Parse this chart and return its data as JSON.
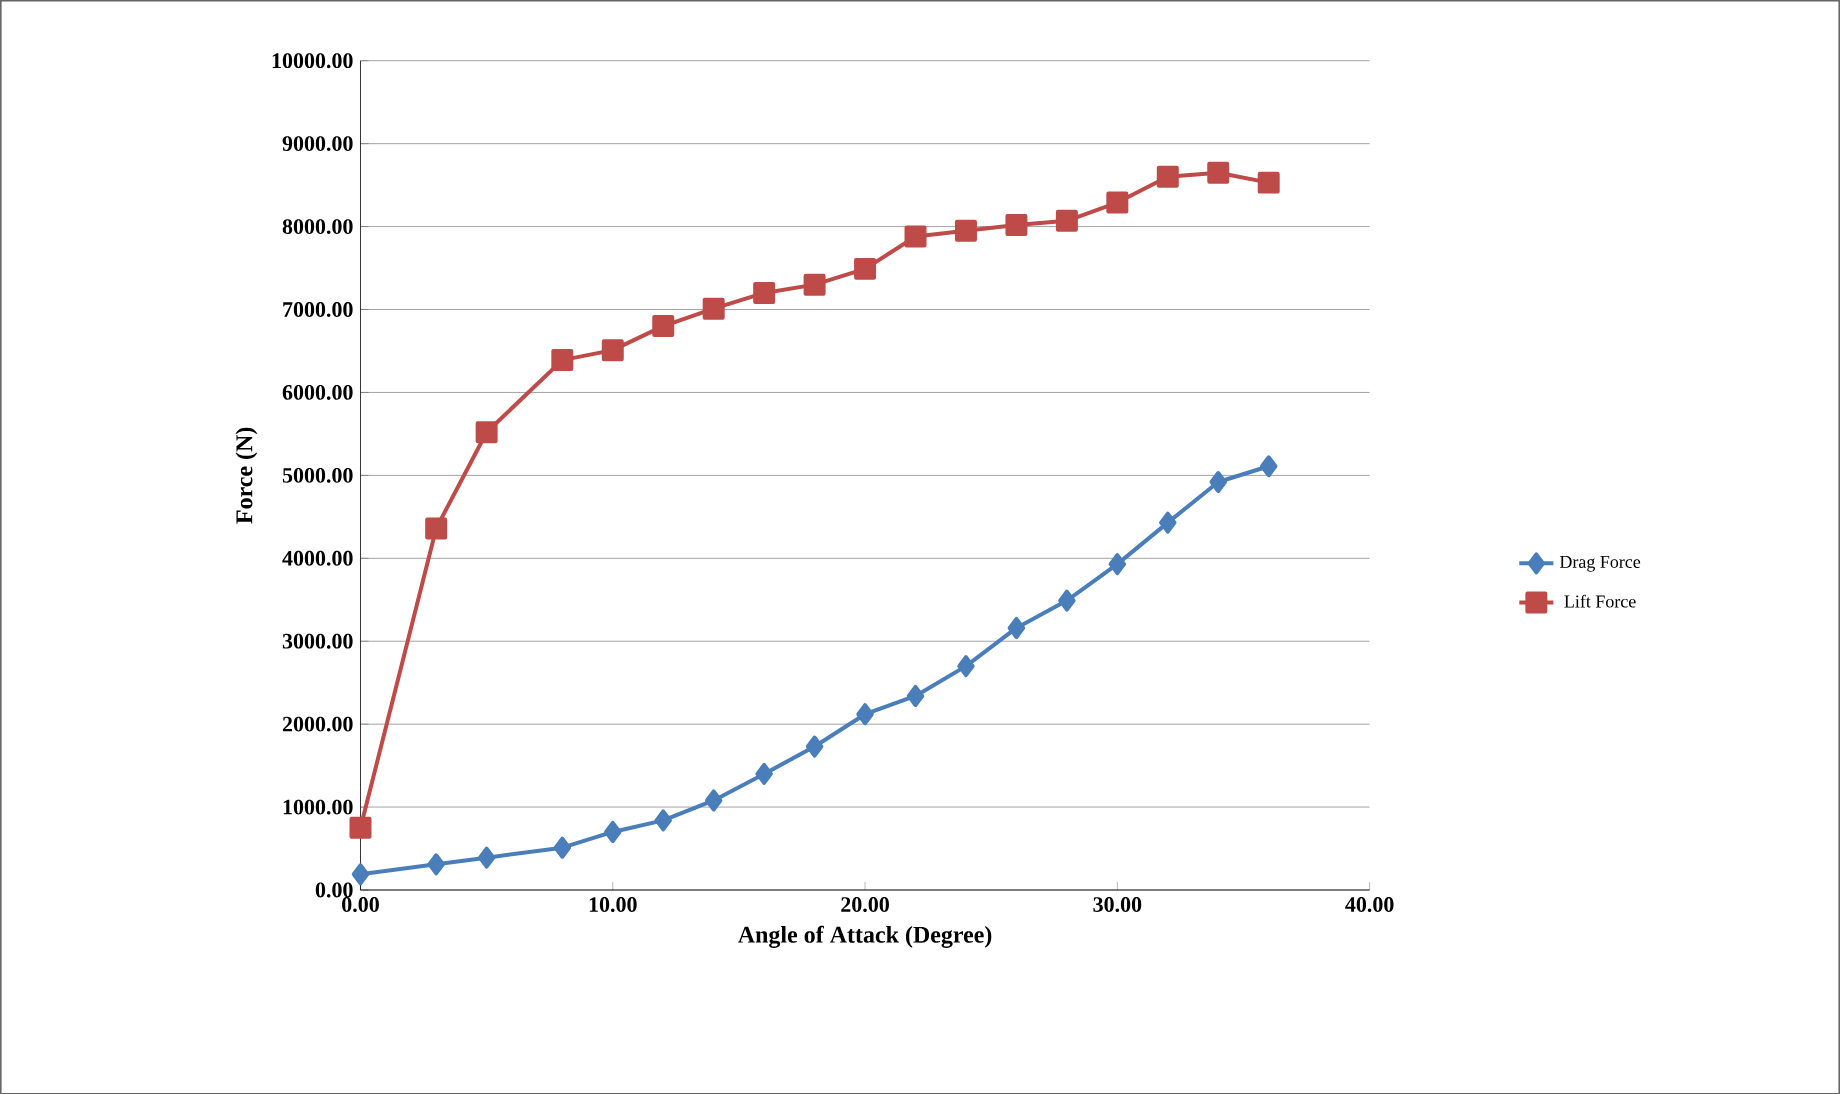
{
  "chart_data": {
    "type": "line",
    "xlabel": "Angle of Attack (Degree)",
    "ylabel": "Force (N)",
    "xlim": [
      0,
      40
    ],
    "ylim": [
      0,
      10000
    ],
    "xticks": [
      {
        "value": 0,
        "label": "0.00"
      },
      {
        "value": 10,
        "label": "10.00"
      },
      {
        "value": 20,
        "label": "20.00"
      },
      {
        "value": 30,
        "label": "30.00"
      },
      {
        "value": 40,
        "label": "40.00"
      }
    ],
    "yticks": [
      {
        "value": 0,
        "label": "0.00"
      },
      {
        "value": 1000,
        "label": "1000.00"
      },
      {
        "value": 2000,
        "label": "2000.00"
      },
      {
        "value": 3000,
        "label": "3000.00"
      },
      {
        "value": 4000,
        "label": "4000.00"
      },
      {
        "value": 5000,
        "label": "5000.00"
      },
      {
        "value": 6000,
        "label": "6000.00"
      },
      {
        "value": 7000,
        "label": "7000.00"
      },
      {
        "value": 8000,
        "label": "8000.00"
      },
      {
        "value": 9000,
        "label": "9000.00"
      },
      {
        "value": 10000,
        "label": "10000.00"
      }
    ],
    "grid": "y",
    "legend": "right",
    "line_style": "solid",
    "x": [
      0,
      3,
      5,
      8,
      10,
      12,
      14,
      16,
      18,
      20,
      22,
      24,
      26,
      28,
      30,
      32,
      34,
      36
    ],
    "series": [
      {
        "name": "Drag Force",
        "color": "#4a7ebb",
        "marker": "diamond",
        "values": [
          190,
          310,
          390,
          510,
          700,
          840,
          1080,
          1400,
          1730,
          2120,
          2340,
          2700,
          3160,
          3490,
          3930,
          4430,
          4920,
          5110
        ]
      },
      {
        "name": "Lift Force",
        "color": "#be4b48",
        "marker": "square",
        "values": [
          750,
          4360,
          5520,
          6390,
          6510,
          6800,
          7010,
          7200,
          7300,
          7490,
          7880,
          7950,
          8020,
          8070,
          8290,
          8600,
          8650,
          8530
        ]
      }
    ]
  }
}
